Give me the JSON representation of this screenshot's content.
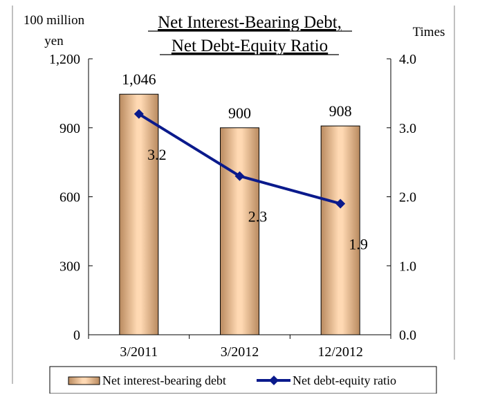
{
  "chart_data": {
    "type": "bar",
    "title_lines": [
      "Net Interest-Bearing Debt,",
      "Net Debt-Equity Ratio"
    ],
    "left_axis_unit_lines": [
      "100 million",
      "yen"
    ],
    "right_axis_unit": "Times",
    "categories": [
      "3/2011",
      "3/2012",
      "12/2012"
    ],
    "y_left": {
      "min": 0,
      "max": 1200,
      "ticks": [
        0,
        300,
        600,
        900,
        1200
      ],
      "tick_labels": [
        "0",
        "300",
        "600",
        "900",
        "1,200"
      ]
    },
    "y_right": {
      "min": 0,
      "max": 4,
      "ticks": [
        0,
        1,
        2,
        3,
        4
      ],
      "tick_labels": [
        "0.0",
        "1.0",
        "2.0",
        "3.0",
        "4.0"
      ]
    },
    "series": [
      {
        "name": "Net interest-bearing debt",
        "kind": "bar",
        "axis": "left",
        "values": [
          1046,
          900,
          908
        ],
        "value_labels": [
          "1,046",
          "900",
          "908"
        ]
      },
      {
        "name": "Net debt-equity ratio",
        "kind": "line",
        "axis": "right",
        "values": [
          3.2,
          2.3,
          1.9
        ],
        "value_labels": [
          "3.2",
          "2.3",
          "1.9"
        ],
        "color": "#0a1a8c"
      }
    ],
    "grid": false,
    "legend_position": "bottom"
  }
}
